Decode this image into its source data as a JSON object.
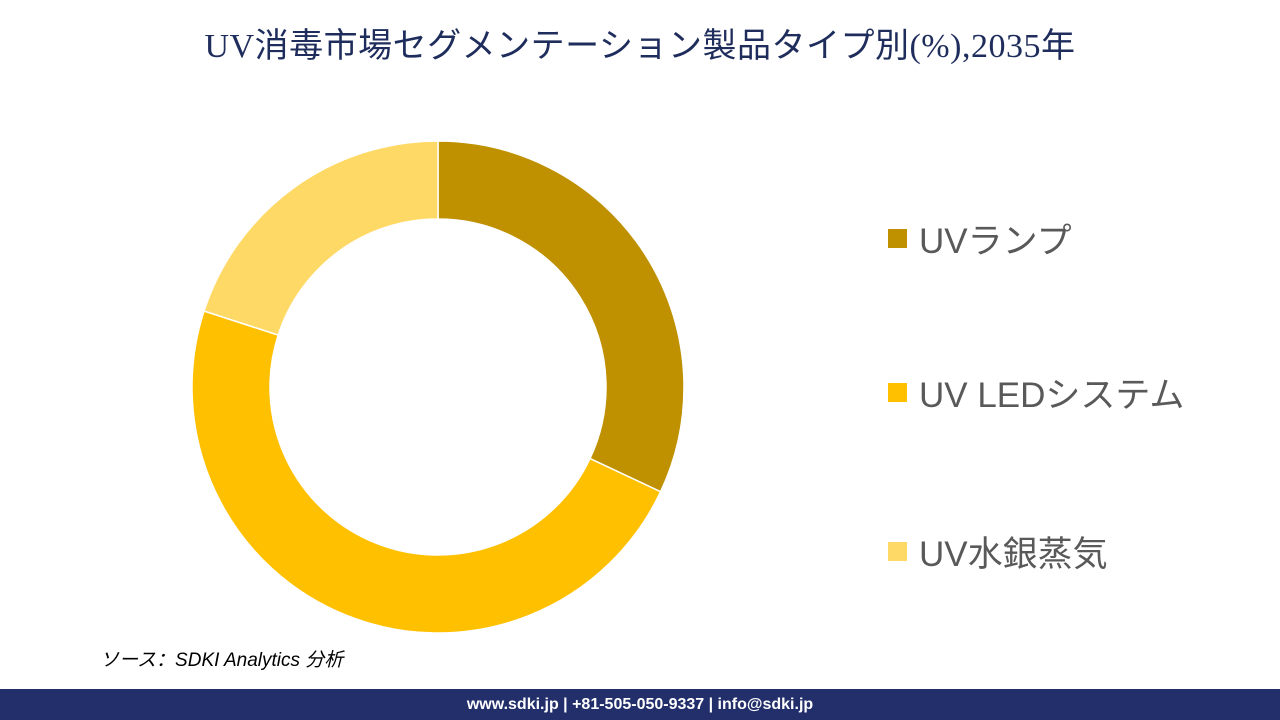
{
  "title": "UV消毒市場セグメンテーション製品タイプ別(%),2035年",
  "chart_data": {
    "type": "pie",
    "variant": "donut",
    "title": "UV消毒市場セグメンテーション製品タイプ別(%),2035年",
    "categories": [
      "UVランプ",
      "UV LEDシステム",
      "UV水銀蒸気"
    ],
    "values": [
      32,
      48,
      20
    ],
    "colors": [
      "#BF9000",
      "#FFC000",
      "#FFD966"
    ],
    "unit": "%",
    "start_angle_deg": 0,
    "direction": "clockwise",
    "legend_position": "right",
    "data_labels": false
  },
  "legend": {
    "items": [
      {
        "label": "UVランプ",
        "color": "#BF9000"
      },
      {
        "label": "UV LEDシステム",
        "color": "#FFC000"
      },
      {
        "label": "UV水銀蒸気",
        "color": "#FFD966"
      }
    ]
  },
  "source": "ソース：SDKI Analytics 分析",
  "footer": "www.sdki.jp | +81-505-050-9337 | info@sdki.jp"
}
